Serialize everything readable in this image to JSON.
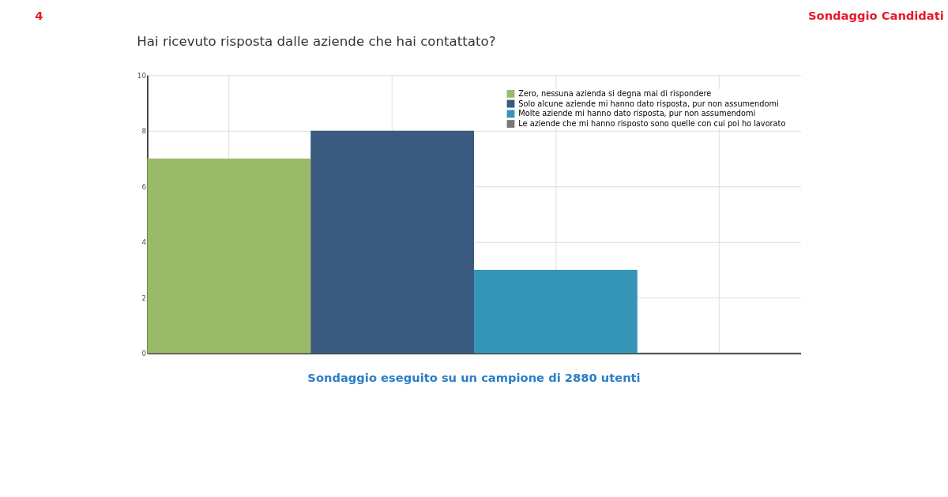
{
  "chart_data": {
    "type": "bar",
    "title": "Hai ricevuto risposta dalle aziende che hai contattato?",
    "categories": [
      null,
      null,
      null,
      null
    ],
    "series": [
      {
        "name": "Zero, nessuna azienda si degna mai di rispondere",
        "color": "#9aba6a",
        "values": [
          7,
          null,
          null,
          null
        ]
      },
      {
        "name": "Solo alcune aziende mi hanno dato risposta, pur non assumendomi",
        "color": "#3a5a80",
        "values": [
          null,
          8,
          null,
          null
        ]
      },
      {
        "name": "Molte aziende mi hanno dato risposta, pur non assumendomi",
        "color": "#3596b8",
        "values": [
          null,
          null,
          3,
          null
        ]
      },
      {
        "name": "Le aziende che mi hanno risposto sono quelle con cui poi ho lavorato",
        "color": "#777777",
        "values": [
          null,
          null,
          null,
          0
        ]
      }
    ],
    "ylim": [
      0,
      10
    ],
    "yticks": [
      0,
      2,
      4,
      6,
      8,
      10
    ],
    "grid": true,
    "legend": "top right",
    "annotations": [
      "4",
      "Sondaggio Candidati",
      "Sondaggio eseguito su un campione di 2880 utenti"
    ]
  }
}
